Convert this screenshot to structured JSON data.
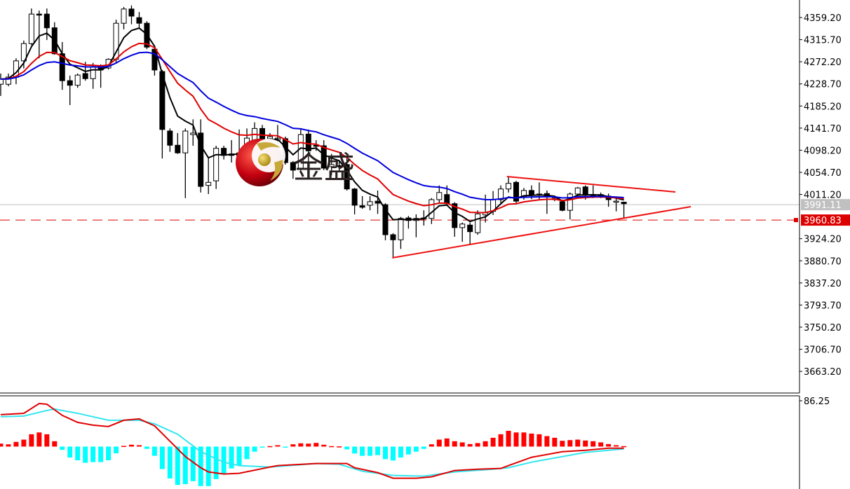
{
  "logo": {
    "text": "金盛"
  },
  "colors": {
    "background": "#ffffff",
    "bull_body": "#ffffff",
    "bear_body": "#000000",
    "ma_fast": "#000000",
    "ma_mid": "#e00000",
    "ma_slow": "#0000dd",
    "trendline": "#ee1111",
    "current_price_line": "#c0c0c0",
    "alert_line": "#dd0000",
    "macd_positive": "#ff0000",
    "macd_negative": "#00ffff",
    "macd_line": "#e00000",
    "signal_line": "#33e6f0"
  },
  "chart_data": [
    {
      "type": "candlestick",
      "title": "",
      "ylim": [
        3620.6,
        4393.7
      ],
      "y_ticks": [
        "4359.20",
        "4315.70",
        "4272.20",
        "4228.70",
        "4185.20",
        "4141.70",
        "4098.20",
        "4054.70",
        "4011.20",
        "3924.20",
        "3880.70",
        "3837.20",
        "3793.70",
        "3750.20",
        "3706.70",
        "3663.20"
      ],
      "current_price": {
        "value": 3991.11,
        "label": "3991.11"
      },
      "alert_line": {
        "value": 3960.83,
        "label": "3960.83"
      },
      "ohlc": [
        [
          4228,
          4249,
          4205,
          4238
        ],
        [
          4228,
          4249,
          4224,
          4242
        ],
        [
          4242,
          4279,
          4228,
          4274
        ],
        [
          4274,
          4314,
          4259,
          4308
        ],
        [
          4308,
          4377,
          4305,
          4366
        ],
        [
          4366,
          4373,
          4279,
          4365
        ],
        [
          4366,
          4377,
          4315,
          4339
        ],
        [
          4339,
          4350,
          4286,
          4288
        ],
        [
          4288,
          4311,
          4217,
          4235
        ],
        [
          4235,
          4245,
          4187,
          4226
        ],
        [
          4226,
          4249,
          4221,
          4246
        ],
        [
          4249,
          4272,
          4235,
          4239
        ],
        [
          4239,
          4270,
          4219,
          4263
        ],
        [
          4263,
          4267,
          4221,
          4256
        ],
        [
          4260,
          4279,
          4257,
          4277
        ],
        [
          4277,
          4355,
          4270,
          4348
        ],
        [
          4348,
          4380,
          4336,
          4376
        ],
        [
          4376,
          4383,
          4346,
          4362
        ],
        [
          4359,
          4370,
          4339,
          4348
        ],
        [
          4348,
          4352,
          4297,
          4301
        ],
        [
          4297,
          4300,
          4245,
          4256
        ],
        [
          4253,
          4256,
          4082,
          4139
        ],
        [
          4136,
          4141,
          4095,
          4108
        ],
        [
          4108,
          4132,
          4091,
          4093
        ],
        [
          4093,
          4141,
          4004,
          4136
        ],
        [
          4129,
          4159,
          4107,
          4132
        ],
        [
          4132,
          4159,
          4015,
          4027
        ],
        [
          4029,
          4084,
          4012,
          4035
        ],
        [
          4038,
          4107,
          4022,
          4102
        ],
        [
          4102,
          4107,
          4080,
          4088
        ],
        [
          4088,
          4118,
          4074,
          4091
        ],
        [
          4088,
          4139,
          4082,
          4093
        ],
        [
          4097,
          4141,
          4088,
          4122
        ],
        [
          4104,
          4153,
          4102,
          4141
        ],
        [
          4141,
          4148,
          4111,
          4118
        ],
        [
          4121,
          4132,
          4102,
          4125
        ],
        [
          4118,
          4148,
          4104,
          4122
        ],
        [
          4121,
          4125,
          4070,
          4074
        ],
        [
          4074,
          4077,
          4042,
          4059
        ],
        [
          4063,
          4139,
          4056,
          4129
        ],
        [
          4130,
          4139,
          4070,
          4097
        ],
        [
          4108,
          4118,
          4097,
          4106
        ],
        [
          4107,
          4118,
          4059,
          4063
        ],
        [
          4066,
          4091,
          4049,
          4070
        ],
        [
          4068,
          4077,
          4056,
          4067
        ],
        [
          4070,
          4084,
          4019,
          4022
        ],
        [
          4022,
          4024,
          3972,
          3990
        ],
        [
          3989,
          4008,
          3983,
          3986
        ],
        [
          3990,
          4008,
          3980,
          3997
        ],
        [
          3998,
          4019,
          3973,
          3994
        ],
        [
          3991,
          3994,
          3921,
          3932
        ],
        [
          3932,
          3935,
          3887,
          3922
        ],
        [
          3922,
          3967,
          3904,
          3964
        ],
        [
          3965,
          3969,
          3944,
          3960
        ],
        [
          3960,
          3972,
          3927,
          3964
        ],
        [
          3964,
          3980,
          3950,
          3965
        ],
        [
          3964,
          4004,
          3953,
          4001
        ],
        [
          4001,
          4029,
          3994,
          4015
        ],
        [
          4011,
          4029,
          3990,
          3993
        ],
        [
          3993,
          3996,
          3928,
          3946
        ],
        [
          3946,
          3956,
          3918,
          3953
        ],
        [
          3951,
          3956,
          3914,
          3938
        ],
        [
          3936,
          3980,
          3932,
          3973
        ],
        [
          3971,
          4011,
          3956,
          3975
        ],
        [
          3978,
          4018,
          3971,
          4001
        ],
        [
          4001,
          4029,
          3994,
          4022
        ],
        [
          4022,
          4045,
          4015,
          4033
        ],
        [
          4035,
          4038,
          3994,
          3998
        ],
        [
          4008,
          4024,
          4001,
          4019
        ],
        [
          4019,
          4029,
          4002,
          4011
        ],
        [
          4012,
          4035,
          4001,
          4012
        ],
        [
          4013,
          4019,
          3973,
          4008
        ],
        [
          4001,
          4008,
          3998,
          4004
        ],
        [
          3997,
          4001,
          3978,
          3980
        ],
        [
          3980,
          4015,
          3962,
          4012
        ],
        [
          4012,
          4026,
          4004,
          4024
        ],
        [
          4026,
          4029,
          4001,
          4011
        ],
        [
          4011,
          4029,
          4004,
          4011
        ],
        [
          4011,
          4015,
          4004,
          4009
        ],
        [
          4008,
          4013,
          3987,
          4001
        ],
        [
          3998,
          4004,
          3978,
          3998
        ],
        [
          3996,
          3997,
          3964,
          3993
        ]
      ],
      "trendlines": [
        {
          "from": {
            "bar": 65.8,
            "price": 4046.4
          },
          "to": {
            "bar": 87.7,
            "price": 4016.1
          }
        },
        {
          "from": {
            "bar": 50.9,
            "price": 3886.6
          },
          "to": {
            "bar": 89.7,
            "price": 3987.2
          }
        }
      ]
    },
    {
      "type": "macd",
      "ylim": [
        -79.8,
        95.5
      ],
      "y_ticks": [
        "86.25"
      ],
      "histogram": [
        5.6,
        4.3,
        8.8,
        13.1,
        23.2,
        26.6,
        23.2,
        10.1,
        -6.2,
        -20.6,
        -25.8,
        -30.5,
        -29.2,
        -29.2,
        -25.8,
        -12.7,
        1.3,
        3.5,
        2.6,
        -4.3,
        -17.4,
        -42.3,
        -59.9,
        -72.1,
        -70.7,
        -65.1,
        -74.3,
        -74.3,
        -61.2,
        -51.1,
        -41,
        -35,
        -23.6,
        -9.6,
        -1.7,
        0.9,
        2.6,
        -1.7,
        4.3,
        6.2,
        5.6,
        6.9,
        3.5,
        0.9,
        0.4,
        -5.2,
        -13.1,
        -17.4,
        -17.4,
        -16.1,
        -23.6,
        -26.2,
        -20.6,
        -14.8,
        -9.6,
        -4.3,
        4.3,
        13.1,
        15.3,
        10.1,
        7.9,
        4.8,
        6.6,
        10.1,
        16.6,
        23.2,
        29.7,
        26.6,
        26.6,
        24.5,
        23.2,
        19.7,
        16.6,
        10.9,
        12.2,
        13.1,
        11.4,
        10.1,
        7.9,
        4.8,
        2.6,
        0.9
      ],
      "macd_line": [
        [
          0,
          60.0
        ],
        [
          3,
          62.6
        ],
        [
          5,
          81.0
        ],
        [
          6,
          79.7
        ],
        [
          8,
          58.7
        ],
        [
          10,
          45.6
        ],
        [
          12,
          40.3
        ],
        [
          14,
          37.7
        ],
        [
          16,
          49.5
        ],
        [
          18,
          52.1
        ],
        [
          20,
          39.0
        ],
        [
          22,
          10.1
        ],
        [
          24,
          -18.8
        ],
        [
          26,
          -39.8
        ],
        [
          27,
          -47.7
        ],
        [
          29,
          -51.6
        ],
        [
          31,
          -50.3
        ],
        [
          35,
          -38.5
        ],
        [
          36,
          -35.8
        ],
        [
          41,
          -31.9
        ],
        [
          45,
          -31.9
        ],
        [
          46,
          -39.8
        ],
        [
          49,
          -49.0
        ],
        [
          51,
          -59.5
        ],
        [
          54,
          -59.5
        ],
        [
          56,
          -56.9
        ],
        [
          59,
          -45.0
        ],
        [
          62,
          -42.5
        ],
        [
          65,
          -41.1
        ],
        [
          66,
          -35.8
        ],
        [
          69,
          -20.1
        ],
        [
          73,
          -9.6
        ],
        [
          76,
          -7.0
        ],
        [
          79,
          -3.0
        ],
        [
          81,
          -3.0
        ]
      ],
      "signal_line": [
        [
          0,
          56.1
        ],
        [
          3,
          57.4
        ],
        [
          6,
          67.9
        ],
        [
          7,
          70.6
        ],
        [
          10,
          62.6
        ],
        [
          14,
          49.5
        ],
        [
          16,
          49.5
        ],
        [
          18,
          49.5
        ],
        [
          20,
          42.9
        ],
        [
          23,
          23.2
        ],
        [
          26,
          -9.6
        ],
        [
          29,
          -29.3
        ],
        [
          31,
          -35.8
        ],
        [
          35,
          -38.5
        ],
        [
          41,
          -31.9
        ],
        [
          44,
          -33.2
        ],
        [
          47,
          -46.3
        ],
        [
          51,
          -54.2
        ],
        [
          55,
          -55.5
        ],
        [
          59,
          -47.7
        ],
        [
          64,
          -42.5
        ],
        [
          66,
          -39.8
        ],
        [
          69,
          -29.3
        ],
        [
          73,
          -18.8
        ],
        [
          76,
          -10.9
        ],
        [
          81,
          -4.3
        ]
      ]
    }
  ]
}
